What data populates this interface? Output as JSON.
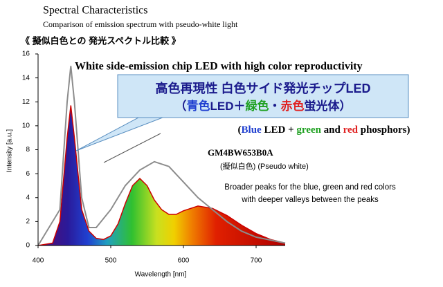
{
  "chart_data": {
    "type": "line",
    "title": "Spectral Characteristics",
    "subtitle": "Comparison of emission spectrum with pseudo-white light",
    "title_ja": "《 擬似白色との 発光スペクトル比較 》",
    "xlabel": "Wavelength [nm]",
    "ylabel": "Intensity [a.u.]",
    "xlim": [
      400,
      740
    ],
    "ylim": [
      0,
      16
    ],
    "xticks": [
      400,
      500,
      600,
      700
    ],
    "yticks": [
      0,
      2,
      4,
      6,
      8,
      10,
      12,
      14,
      16
    ],
    "series": [
      {
        "name": "White side-emission chip LED with high color reproductivity",
        "color": "#cc0000",
        "filled": true,
        "x": [
          400,
          420,
          430,
          440,
          445,
          450,
          460,
          470,
          480,
          490,
          500,
          510,
          520,
          530,
          540,
          550,
          560,
          570,
          580,
          590,
          600,
          620,
          640,
          660,
          680,
          700,
          720,
          740
        ],
        "values": [
          0,
          0.2,
          2,
          9,
          11.7,
          9,
          3,
          1.2,
          0.6,
          0.5,
          0.8,
          1.8,
          3.5,
          5,
          5.6,
          5,
          3.8,
          3,
          2.6,
          2.6,
          2.9,
          3.3,
          3.1,
          2.5,
          1.7,
          1.0,
          0.5,
          0.2
        ]
      },
      {
        "name": "GM4BW653B0A",
        "color": "#8c8c8c",
        "filled": false,
        "x": [
          400,
          430,
          440,
          445,
          450,
          460,
          470,
          480,
          500,
          520,
          540,
          560,
          580,
          600,
          620,
          640,
          660,
          680,
          700,
          740
        ],
        "values": [
          0,
          3,
          12,
          15,
          12,
          4,
          1.5,
          1.5,
          3,
          5,
          6.3,
          7,
          6.6,
          5.3,
          4,
          3,
          2,
          1.2,
          0.7,
          0.2
        ]
      }
    ],
    "callout": {
      "line1": "高色再現性 白色サイド発光チップLED",
      "line2": [
        {
          "text": "（",
          "color": "#1a1a8c"
        },
        {
          "text": "青色",
          "color": "#1f3fd0"
        },
        {
          "text": "LED＋",
          "color": "#1a1a8c"
        },
        {
          "text": "緑色",
          "color": "#1ea020"
        },
        {
          "text": "・",
          "color": "#1a1a8c"
        },
        {
          "text": "赤色",
          "color": "#e02020"
        },
        {
          "text": "蛍光体）",
          "color": "#1a1a8c"
        }
      ],
      "line3": [
        {
          "text": "(",
          "color": "#000000"
        },
        {
          "text": "Blue",
          "color": "#1f3fd0"
        },
        {
          "text": " LED + ",
          "color": "#000000"
        },
        {
          "text": "green",
          "color": "#1ea020"
        },
        {
          "text": " and ",
          "color": "#000000"
        },
        {
          "text": "red",
          "color": "#e02020"
        },
        {
          "text": " phosphors)",
          "color": "#000000"
        }
      ]
    },
    "pseudo_label": "(擬似白色) (Pseudo white)",
    "note": [
      "Broader peaks for the blue, green and red colors",
      "with deeper valleys between the peaks"
    ]
  }
}
